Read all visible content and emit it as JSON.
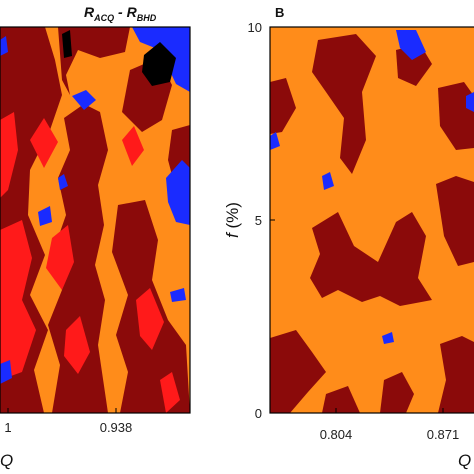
{
  "chart_data": [
    {
      "type": "heatmap",
      "panel": "",
      "title": "R_ACQ - R_BHD",
      "title_parts": {
        "r1": "R",
        "s1": "ACQ",
        "sep": " - ",
        "r2": "R",
        "s2": "BHD"
      },
      "xlabel": "Q",
      "xticks": [
        "1",
        "0.938"
      ],
      "colors": {
        "dark_red": "#8b0a0a",
        "orange": "#ff8c1a",
        "red": "#ff1a1a",
        "blue": "#1a2bff",
        "black": "#000000"
      }
    },
    {
      "type": "heatmap",
      "panel": "B",
      "ylabel_var": "f",
      "ylabel_unit": " (%)",
      "xlabel": "Q",
      "yticks": [
        "0",
        "5",
        "10"
      ],
      "ylim": [
        0,
        10
      ],
      "xticks": [
        "0.804",
        "0.871"
      ],
      "colors": {
        "dark_red": "#8b0a0a",
        "orange": "#ff8c1a",
        "blue": "#1a2bff"
      }
    }
  ]
}
